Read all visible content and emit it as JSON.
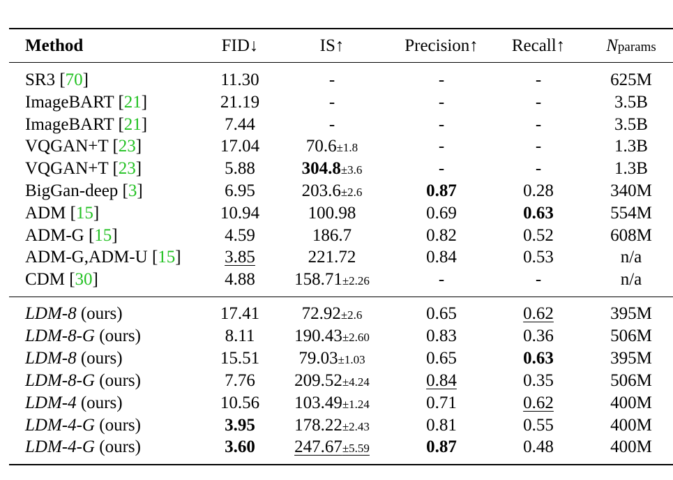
{
  "header": {
    "method": "Method",
    "fid": "FID↓",
    "is": "IS↑",
    "precision": "Precision↑",
    "recall": "Recall↑",
    "params_n": "N",
    "params_sub": "params"
  },
  "group1": [
    {
      "method": "SR3",
      "cite": "70",
      "fid": "11.30",
      "is": "-",
      "is_pm": "",
      "prec": "-",
      "rec": "-",
      "params": "625M"
    },
    {
      "method": "ImageBART",
      "cite": "21",
      "fid": "21.19",
      "is": "-",
      "is_pm": "",
      "prec": "-",
      "rec": "-",
      "params": "3.5B"
    },
    {
      "method": "ImageBART",
      "cite": "21",
      "fid": "7.44",
      "is": "-",
      "is_pm": "",
      "prec": "-",
      "rec": "-",
      "params": "3.5B"
    },
    {
      "method": "VQGAN+T",
      "cite": "23",
      "fid": "17.04",
      "is": "70.6",
      "is_pm": "±1.8",
      "prec": "-",
      "rec": "-",
      "params": "1.3B"
    },
    {
      "method": "VQGAN+T",
      "cite": "23",
      "fid": "5.88",
      "is": "304.8",
      "is_pm": "±3.6",
      "prec": "-",
      "rec": "-",
      "params": "1.3B"
    },
    {
      "method": "BigGan-deep",
      "cite": "3",
      "fid": "6.95",
      "is": "203.6",
      "is_pm": "±2.6",
      "prec": "0.87",
      "rec": "0.28",
      "params": "340M"
    },
    {
      "method": "ADM",
      "cite": "15",
      "fid": "10.94",
      "is": "100.98",
      "is_pm": "",
      "prec": "0.69",
      "rec": "0.63",
      "params": "554M"
    },
    {
      "method": "ADM-G",
      "cite": "15",
      "fid": "4.59",
      "is": "186.7",
      "is_pm": "",
      "prec": "0.82",
      "rec": "0.52",
      "params": "608M"
    },
    {
      "method": "ADM-G,ADM-U",
      "cite": "15",
      "fid": "3.85",
      "is": "221.72",
      "is_pm": "",
      "prec": "0.84",
      "rec": "0.53",
      "params": "n/a"
    },
    {
      "method": "CDM",
      "cite": "30",
      "fid": "4.88",
      "is": "158.71",
      "is_pm": "±2.26",
      "prec": "-",
      "rec": "-",
      "params": "n/a"
    }
  ],
  "group2": [
    {
      "method": "LDM-8",
      "suffix": "(ours)",
      "fid": "17.41",
      "is": "72.92",
      "is_pm": "±2.6",
      "prec": "0.65",
      "rec": "0.62",
      "params": "395M"
    },
    {
      "method": "LDM-8-G",
      "suffix": "(ours)",
      "fid": "8.11",
      "is": "190.43",
      "is_pm": "±2.60",
      "prec": "0.83",
      "rec": "0.36",
      "params": "506M"
    },
    {
      "method": "LDM-8",
      "suffix": "(ours)",
      "fid": "15.51",
      "is": "79.03",
      "is_pm": "±1.03",
      "prec": "0.65",
      "rec": "0.63",
      "params": "395M"
    },
    {
      "method": "LDM-8-G",
      "suffix": "(ours)",
      "fid": "7.76",
      "is": "209.52",
      "is_pm": "±4.24",
      "prec": "0.84",
      "rec": "0.35",
      "params": "506M"
    },
    {
      "method": "LDM-4",
      "suffix": "(ours)",
      "fid": "10.56",
      "is": "103.49",
      "is_pm": "±1.24",
      "prec": "0.71",
      "rec": "0.62",
      "params": "400M"
    },
    {
      "method": "LDM-4-G",
      "suffix": "(ours)",
      "fid": "3.95",
      "is": "178.22",
      "is_pm": "±2.43",
      "prec": "0.81",
      "rec": "0.55",
      "params": "400M"
    },
    {
      "method": "LDM-4-G",
      "suffix": "(ours)",
      "fid": "3.60",
      "is": "247.67",
      "is_pm": "±5.59",
      "prec": "0.87",
      "rec": "0.48",
      "params": "400M"
    }
  ]
}
